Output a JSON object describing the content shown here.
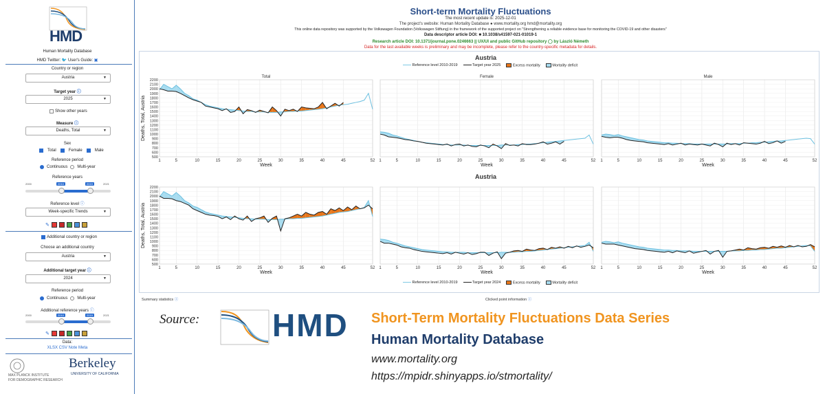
{
  "sidebar": {
    "org_name": "Human Mortality Database",
    "twitter": "HMD Twitter:",
    "guide": "User's Guide:",
    "country_label": "Country or region",
    "country_value": "Austria",
    "target_year_label": "Target year",
    "target_year_value": "2025",
    "show_other_years": "Show other years",
    "measure_label": "Measure",
    "measure_value": "Deaths, Total",
    "sex_label": "Sex",
    "sex_options": [
      "Total",
      "Female",
      "Male"
    ],
    "ref_period_label": "Reference period",
    "ref_period_options": [
      "Continuous",
      "Multi-year"
    ],
    "ref_years_label": "Reference years",
    "ref_years_min": "2000",
    "ref_years_max": "2021",
    "ref_years_from": "2010",
    "ref_years_to": "2019",
    "ref_level_label": "Reference level",
    "ref_level_value": "Week-specific Trends",
    "additional_checkbox": "Additional country or region",
    "add_country_label": "Choose an additional country",
    "add_country_value": "Austria",
    "add_year_label": "Additional target year",
    "add_year_value": "2024",
    "add_ref_period_label": "Reference period",
    "add_ref_years_label": "Additional reference years",
    "add_ref_min": "2000",
    "add_ref_max": "2021",
    "add_ref_from": "2010",
    "add_ref_to": "2019",
    "data_label": "Data:",
    "data_links": [
      "XLSX",
      "CSV",
      "Note",
      "Meta"
    ],
    "mpi_text": "MAX PLANCK INSTITUTE\nFOR DEMOGRAPHIC RESEARCH",
    "berkeley": "Berkeley",
    "berkeley_sub": "UNIVERSITY OF CALIFORNIA",
    "logo_text": "HMD"
  },
  "header": {
    "title": "Short-term Mortality Fluctuations",
    "update": "The most recent update is: 2025-12-01",
    "website": "The project's website: Human Mortality Database ● www.mortality.org hmd@mortality.org",
    "support": "This online data repository was supported by the Volkswagen Foundation (Volkswagen Stiftung) in the framework of the supported project on \"Strengthening a reliable evidence base for monitoring the COVID-19 and other disasters\"",
    "descriptor": "Data descriptor article DOI: ■ 10.1038/s41597-021-01019-1",
    "research": "Research article DOI: 10.1371/journal.pone.0246663 || UX/UI and public GitHub repository ◯ by László Németh",
    "warning": "Data for the last available weeks is preliminary and may be incomplete, please refer to the country-specific metadata for details."
  },
  "colors": {
    "accent": "#2b4f8a",
    "reference": "#7ec8e3",
    "excess": "#e8761a",
    "deficit": "#a8dcf0",
    "target": "#222222"
  },
  "panel1": {
    "country": "Austria",
    "legend": [
      "Reference level 2010-2019",
      "Target year 2025",
      "Excess mortality",
      "Mortality deficit"
    ],
    "subplots": [
      "Total",
      "Female",
      "Male"
    ],
    "ylabel": "Deaths, Total, Austria",
    "xlabel": "Week"
  },
  "panel2": {
    "country": "Austria",
    "legend": [
      "Reference level 2010-2019",
      "Target year 2024",
      "Excess mortality",
      "Mortality deficit"
    ],
    "ylabel": "Deaths, Total, Austria",
    "xlabel": "Week"
  },
  "footer": {
    "summary": "Summary statistics",
    "clicked": "Clicked point information"
  },
  "source": {
    "label": "Source:",
    "logo": "HMD",
    "line1": "Short-Term Mortality Fluctuations Data Series",
    "line2": "Human Mortality Database",
    "line3": "www.mortality.org",
    "line4": "https://mpidr.shinyapps.io/stmortality/"
  },
  "chart_data": [
    {
      "type": "line",
      "title": "Total",
      "xlabel": "Week",
      "ylabel": "Deaths, Total, Austria",
      "xticks": [
        1,
        5,
        10,
        15,
        20,
        25,
        30,
        35,
        40,
        45,
        52
      ],
      "yticks": [
        500,
        600,
        700,
        800,
        900,
        1000,
        1100,
        1200,
        1300,
        1400,
        1500,
        1600,
        1700,
        1800,
        1900,
        2000,
        2100,
        2200
      ],
      "ylim": [
        500,
        2200
      ],
      "series": [
        {
          "name": "Reference level 2010-2019",
          "values": [
            1980,
            2100,
            2050,
            2000,
            2080,
            2000,
            1900,
            1850,
            1780,
            1750,
            1700,
            1650,
            1620,
            1600,
            1580,
            1560,
            1550,
            1540,
            1530,
            1520,
            1510,
            1500,
            1500,
            1490,
            1490,
            1490,
            1480,
            1480,
            1480,
            1490,
            1490,
            1500,
            1500,
            1510,
            1510,
            1520,
            1530,
            1540,
            1550,
            1560,
            1580,
            1600,
            1620,
            1640,
            1650,
            1660,
            1680,
            1700,
            1720,
            1750,
            1900,
            1550
          ]
        },
        {
          "name": "Target year 2025",
          "values": [
            2000,
            1980,
            1950,
            1950,
            1940,
            1900,
            1850,
            1800,
            1760,
            1730,
            1700,
            1620,
            1600,
            1580,
            1560,
            1520,
            1560,
            1480,
            1500,
            1600,
            1450,
            1540,
            1520,
            1480,
            1530,
            1500,
            1470,
            1600,
            1520,
            1400,
            1550,
            1520,
            1550,
            1500,
            1600,
            1580,
            1570,
            1560,
            1600,
            1700,
            1560,
            1620,
            1680,
            1620,
            1700
          ]
        }
      ]
    },
    {
      "type": "line",
      "title": "Female",
      "xlabel": "Week",
      "xticks": [
        1,
        5,
        10,
        15,
        20,
        25,
        30,
        35,
        40,
        45,
        52
      ],
      "series": [
        {
          "name": "Reference level 2010-2019",
          "values": [
            1050,
            1040,
            1020,
            980,
            960,
            930,
            900,
            880,
            860,
            840,
            820,
            810,
            800,
            790,
            780,
            770,
            770,
            760,
            760,
            760,
            760,
            750,
            750,
            750,
            750,
            750,
            750,
            750,
            750,
            760,
            760,
            760,
            760,
            770,
            770,
            780,
            780,
            790,
            800,
            810,
            820,
            830,
            840,
            850,
            860,
            870,
            880,
            890,
            900,
            910,
            980,
            780
          ]
        },
        {
          "name": "Target year 2025",
          "values": [
            1000,
            980,
            940,
            930,
            920,
            900,
            880,
            870,
            850,
            840,
            820,
            800,
            790,
            780,
            770,
            760,
            780,
            740,
            770,
            780,
            740,
            760,
            730,
            720,
            760,
            740,
            700,
            780,
            740,
            680,
            790,
            750,
            760,
            740,
            790,
            770,
            770,
            780,
            800,
            830,
            780,
            800,
            830,
            780,
            840
          ]
        }
      ]
    },
    {
      "type": "line",
      "title": "Male",
      "xlabel": "Week",
      "xticks": [
        1,
        5,
        10,
        15,
        20,
        25,
        30,
        35,
        40,
        45,
        52
      ],
      "series": [
        {
          "name": "Reference level 2010-2019",
          "values": [
            980,
            1000,
            990,
            970,
            990,
            960,
            940,
            920,
            900,
            880,
            870,
            850,
            840,
            830,
            820,
            810,
            810,
            800,
            800,
            790,
            790,
            790,
            780,
            780,
            780,
            780,
            780,
            780,
            780,
            780,
            780,
            790,
            790,
            790,
            800,
            800,
            810,
            810,
            820,
            820,
            830,
            840,
            850,
            850,
            860,
            870,
            880,
            890,
            900,
            910,
            900,
            780
          ]
        },
        {
          "name": "Target year 2025",
          "values": [
            950,
            930,
            920,
            930,
            930,
            910,
            880,
            860,
            850,
            840,
            830,
            810,
            800,
            790,
            780,
            770,
            790,
            760,
            780,
            800,
            760,
            780,
            770,
            760,
            780,
            760,
            740,
            800,
            770,
            720,
            800,
            770,
            790,
            760,
            810,
            800,
            790,
            780,
            800,
            840,
            790,
            810,
            850,
            800,
            840
          ]
        }
      ]
    },
    {
      "type": "line",
      "title": "",
      "xlabel": "Week",
      "ylabel": "Deaths, Total, Austria",
      "xticks": [
        1,
        5,
        10,
        15,
        20,
        25,
        30,
        35,
        40,
        45,
        52
      ],
      "yticks": [
        500,
        600,
        700,
        800,
        900,
        1000,
        1100,
        1200,
        1300,
        1400,
        1500,
        1600,
        1700,
        1800,
        1900,
        2000,
        2100,
        2200
      ],
      "ylim": [
        500,
        2200
      ],
      "series": [
        {
          "name": "Reference level 2010-2019",
          "values": [
            1980,
            2100,
            2050,
            2000,
            2080,
            2000,
            1900,
            1850,
            1780,
            1750,
            1700,
            1650,
            1620,
            1600,
            1580,
            1560,
            1550,
            1540,
            1530,
            1520,
            1510,
            1500,
            1500,
            1490,
            1490,
            1490,
            1480,
            1480,
            1480,
            1490,
            1490,
            1500,
            1500,
            1510,
            1510,
            1520,
            1530,
            1540,
            1550,
            1560,
            1580,
            1600,
            1620,
            1640,
            1650,
            1660,
            1680,
            1700,
            1720,
            1750,
            1900,
            1550
          ]
        },
        {
          "name": "Target year 2024",
          "values": [
            2000,
            1950,
            1950,
            1940,
            1900,
            1880,
            1840,
            1800,
            1720,
            1680,
            1640,
            1600,
            1580,
            1570,
            1550,
            1500,
            1540,
            1480,
            1560,
            1500,
            1470,
            1560,
            1440,
            1500,
            1520,
            1560,
            1420,
            1510,
            1560,
            1230,
            1500,
            1520,
            1560,
            1600,
            1560,
            1640,
            1600,
            1580,
            1640,
            1660,
            1600,
            1720,
            1680,
            1740,
            1680,
            1760,
            1700,
            1780,
            1720,
            1740,
            1800,
            1720
          ]
        }
      ]
    },
    {
      "type": "line",
      "title": "",
      "xlabel": "Week",
      "xticks": [
        1,
        5,
        10,
        15,
        20,
        25,
        30,
        35,
        40,
        45,
        52
      ],
      "series": [
        {
          "name": "Reference level 2010-2019",
          "values": [
            1050,
            1040,
            1020,
            980,
            960,
            930,
            900,
            880,
            860,
            840,
            820,
            810,
            800,
            790,
            780,
            770,
            770,
            760,
            760,
            760,
            760,
            750,
            750,
            750,
            750,
            750,
            750,
            750,
            750,
            760,
            760,
            760,
            760,
            770,
            770,
            780,
            780,
            790,
            800,
            810,
            820,
            830,
            840,
            850,
            860,
            870,
            880,
            890,
            900,
            910,
            980,
            780
          ]
        },
        {
          "name": "Target year 2024",
          "values": [
            1000,
            960,
            960,
            940,
            920,
            880,
            860,
            850,
            820,
            800,
            780,
            770,
            760,
            750,
            740,
            730,
            750,
            720,
            760,
            740,
            720,
            750,
            710,
            730,
            760,
            760,
            690,
            740,
            770,
            620,
            740,
            760,
            790,
            800,
            780,
            830,
            810,
            800,
            840,
            850,
            820,
            870,
            850,
            880,
            850,
            890,
            860,
            900,
            870,
            890,
            920,
            860
          ]
        }
      ]
    },
    {
      "type": "line",
      "title": "",
      "xlabel": "Week",
      "xticks": [
        1,
        5,
        10,
        15,
        20,
        25,
        30,
        35,
        40,
        45,
        52
      ],
      "series": [
        {
          "name": "Reference level 2010-2019",
          "values": [
            980,
            1000,
            990,
            970,
            990,
            960,
            940,
            920,
            900,
            880,
            870,
            850,
            840,
            830,
            820,
            810,
            810,
            800,
            800,
            790,
            790,
            790,
            780,
            780,
            780,
            780,
            780,
            780,
            780,
            780,
            780,
            790,
            790,
            790,
            800,
            800,
            810,
            810,
            820,
            820,
            830,
            840,
            850,
            850,
            860,
            870,
            880,
            890,
            900,
            910,
            900,
            780
          ]
        },
        {
          "name": "Target year 2024",
          "values": [
            960,
            940,
            940,
            940,
            920,
            900,
            880,
            860,
            840,
            830,
            820,
            800,
            790,
            780,
            770,
            760,
            780,
            750,
            790,
            770,
            750,
            790,
            740,
            760,
            780,
            800,
            720,
            780,
            800,
            650,
            780,
            790,
            810,
            830,
            810,
            860,
            840,
            830,
            860,
            870,
            850,
            890,
            870,
            900,
            870,
            910,
            880,
            910,
            880,
            890,
            930,
            880
          ]
        }
      ]
    }
  ]
}
